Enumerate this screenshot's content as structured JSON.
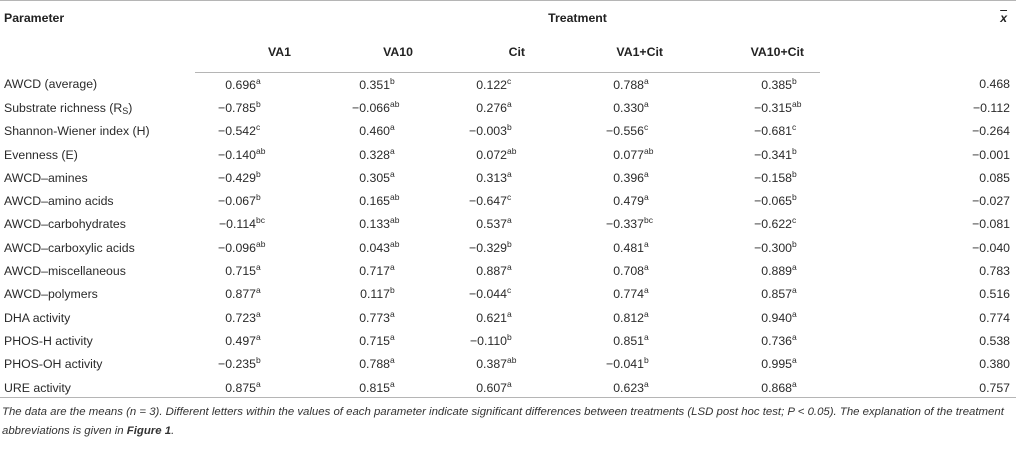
{
  "table": {
    "param_header": "Parameter",
    "treatment_header": "Treatment",
    "mean_header": "x",
    "columns": [
      "VA1",
      "VA10",
      "Cit",
      "VA1+Cit",
      "VA10+Cit"
    ],
    "rows": [
      {
        "name": "AWCD (average)",
        "name_sub": "",
        "name_after": "",
        "cells": [
          {
            "v": "0.696",
            "s": "a"
          },
          {
            "v": "0.351",
            "s": "b"
          },
          {
            "v": "0.122",
            "s": "c"
          },
          {
            "v": "0.788",
            "s": "a"
          },
          {
            "v": "0.385",
            "s": "b"
          }
        ],
        "mean": "0.468"
      },
      {
        "name": "Substrate richness (R",
        "name_sub": "S",
        "name_after": ")",
        "cells": [
          {
            "v": "−0.785",
            "s": "b"
          },
          {
            "v": "−0.066",
            "s": "ab"
          },
          {
            "v": "0.276",
            "s": "a"
          },
          {
            "v": "0.330",
            "s": "a"
          },
          {
            "v": "−0.315",
            "s": "ab"
          }
        ],
        "mean": "−0.112"
      },
      {
        "name": "Shannon-Wiener index (H)",
        "name_sub": "",
        "name_after": "",
        "cells": [
          {
            "v": "−0.542",
            "s": "c"
          },
          {
            "v": "0.460",
            "s": "a"
          },
          {
            "v": "−0.003",
            "s": "b"
          },
          {
            "v": "−0.556",
            "s": "c"
          },
          {
            "v": "−0.681",
            "s": "c"
          }
        ],
        "mean": "−0.264"
      },
      {
        "name": "Evenness (E)",
        "name_sub": "",
        "name_after": "",
        "cells": [
          {
            "v": "−0.140",
            "s": "ab"
          },
          {
            "v": "0.328",
            "s": "a"
          },
          {
            "v": "0.072",
            "s": "ab"
          },
          {
            "v": "0.077",
            "s": "ab"
          },
          {
            "v": "−0.341",
            "s": "b"
          }
        ],
        "mean": "−0.001"
      },
      {
        "name": "AWCD–amines",
        "name_sub": "",
        "name_after": "",
        "cells": [
          {
            "v": "−0.429",
            "s": "b"
          },
          {
            "v": "0.305",
            "s": "a"
          },
          {
            "v": "0.313",
            "s": "a"
          },
          {
            "v": "0.396",
            "s": "a"
          },
          {
            "v": "−0.158",
            "s": "b"
          }
        ],
        "mean": "0.085"
      },
      {
        "name": "AWCD–amino acids",
        "name_sub": "",
        "name_after": "",
        "cells": [
          {
            "v": "−0.067",
            "s": "b"
          },
          {
            "v": "0.165",
            "s": "ab"
          },
          {
            "v": "−0.647",
            "s": "c"
          },
          {
            "v": "0.479",
            "s": "a"
          },
          {
            "v": "−0.065",
            "s": "b"
          }
        ],
        "mean": "−0.027"
      },
      {
        "name": "AWCD–carbohydrates",
        "name_sub": "",
        "name_after": "",
        "cells": [
          {
            "v": "−0.114",
            "s": "bc"
          },
          {
            "v": "0.133",
            "s": "ab"
          },
          {
            "v": "0.537",
            "s": "a"
          },
          {
            "v": "−0.337",
            "s": "bc"
          },
          {
            "v": "−0.622",
            "s": "c"
          }
        ],
        "mean": "−0.081"
      },
      {
        "name": "AWCD–carboxylic acids",
        "name_sub": "",
        "name_after": "",
        "cells": [
          {
            "v": "−0.096",
            "s": "ab"
          },
          {
            "v": "0.043",
            "s": "ab"
          },
          {
            "v": "−0.329",
            "s": "b"
          },
          {
            "v": "0.481",
            "s": "a"
          },
          {
            "v": "−0.300",
            "s": "b"
          }
        ],
        "mean": "−0.040"
      },
      {
        "name": "AWCD–miscellaneous",
        "name_sub": "",
        "name_after": "",
        "cells": [
          {
            "v": "0.715",
            "s": "a"
          },
          {
            "v": "0.717",
            "s": "a"
          },
          {
            "v": "0.887",
            "s": "a"
          },
          {
            "v": "0.708",
            "s": "a"
          },
          {
            "v": "0.889",
            "s": "a"
          }
        ],
        "mean": "0.783"
      },
      {
        "name": "AWCD–polymers",
        "name_sub": "",
        "name_after": "",
        "cells": [
          {
            "v": "0.877",
            "s": "a"
          },
          {
            "v": "0.117",
            "s": "b"
          },
          {
            "v": "−0.044",
            "s": "c"
          },
          {
            "v": "0.774",
            "s": "a"
          },
          {
            "v": "0.857",
            "s": "a"
          }
        ],
        "mean": "0.516"
      },
      {
        "name": "DHA activity",
        "name_sub": "",
        "name_after": "",
        "cells": [
          {
            "v": "0.723",
            "s": "a"
          },
          {
            "v": "0.773",
            "s": "a"
          },
          {
            "v": "0.621",
            "s": "a"
          },
          {
            "v": "0.812",
            "s": "a"
          },
          {
            "v": "0.940",
            "s": "a"
          }
        ],
        "mean": "0.774"
      },
      {
        "name": "PHOS-H activity",
        "name_sub": "",
        "name_after": "",
        "cells": [
          {
            "v": "0.497",
            "s": "a"
          },
          {
            "v": "0.715",
            "s": "a"
          },
          {
            "v": "−0.110",
            "s": "b"
          },
          {
            "v": "0.851",
            "s": "a"
          },
          {
            "v": "0.736",
            "s": "a"
          }
        ],
        "mean": "0.538"
      },
      {
        "name": "PHOS-OH activity",
        "name_sub": "",
        "name_after": "",
        "cells": [
          {
            "v": "−0.235",
            "s": "b"
          },
          {
            "v": "0.788",
            "s": "a"
          },
          {
            "v": "0.387",
            "s": "ab"
          },
          {
            "v": "−0.041",
            "s": "b"
          },
          {
            "v": "0.995",
            "s": "a"
          }
        ],
        "mean": "0.380"
      },
      {
        "name": "URE activity",
        "name_sub": "",
        "name_after": "",
        "cells": [
          {
            "v": "0.875",
            "s": "a"
          },
          {
            "v": "0.815",
            "s": "a"
          },
          {
            "v": "0.607",
            "s": "a"
          },
          {
            "v": "0.623",
            "s": "a"
          },
          {
            "v": "0.868",
            "s": "a"
          }
        ],
        "mean": "0.757"
      }
    ]
  },
  "caption": {
    "text": "The data are the means (n = 3). Different letters within the values of each parameter indicate significant differences between treatments (LSD post hoc test; P < 0.05). The explanation of the treatment abbreviations is given in ",
    "figure_ref": "Figure 1",
    "end": "."
  },
  "colors": {
    "rule": "#b5b5b5",
    "text": "#222222"
  }
}
